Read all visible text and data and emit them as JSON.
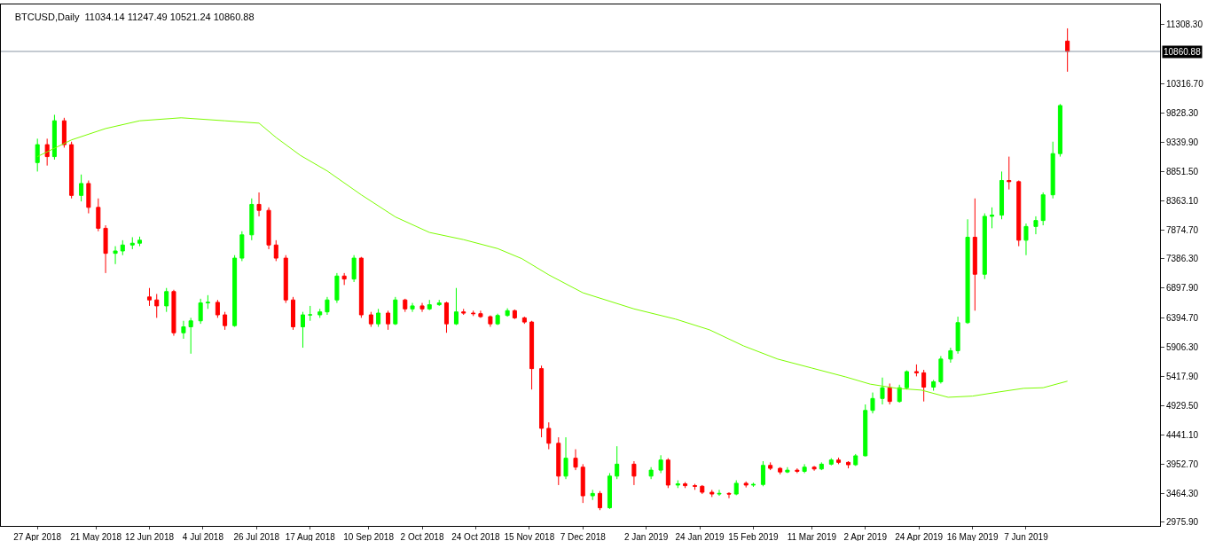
{
  "chart_data": {
    "type": "candlestick",
    "title": "BTCUSD,Daily  11034.14 11247.49 10521.24 10860.88",
    "xlim": [
      "2018-04-12",
      "2019-08-01"
    ],
    "xticks": [
      {
        "value": "2018-04-27",
        "label": "27 Apr 2018"
      },
      {
        "value": "2018-05-21",
        "label": "21 May 2018"
      },
      {
        "value": "2018-06-12",
        "label": "12 Jun 2018"
      },
      {
        "value": "2018-07-04",
        "label": "4 Jul 2018"
      },
      {
        "value": "2018-07-26",
        "label": "26 Jul 2018"
      },
      {
        "value": "2018-08-17",
        "label": "17 Aug 2018"
      },
      {
        "value": "2018-09-10",
        "label": "10 Sep 2018"
      },
      {
        "value": "2018-10-02",
        "label": "2 Oct 2018"
      },
      {
        "value": "2018-10-24",
        "label": "24 Oct 2018"
      },
      {
        "value": "2018-11-15",
        "label": "15 Nov 2018"
      },
      {
        "value": "2018-12-07",
        "label": "7 Dec 2018"
      },
      {
        "value": "2019-01-02",
        "label": "2 Jan 2019"
      },
      {
        "value": "2019-01-24",
        "label": "24 Jan 2019"
      },
      {
        "value": "2019-02-15",
        "label": "15 Feb 2019"
      },
      {
        "value": "2019-03-11",
        "label": "11 Mar 2019"
      },
      {
        "value": "2019-04-02",
        "label": "2 Apr 2019"
      },
      {
        "value": "2019-04-24",
        "label": "24 Apr 2019"
      },
      {
        "value": "2019-05-16",
        "label": "16 May 2019"
      },
      {
        "value": "2019-06-07",
        "label": "7 Jun 2019"
      }
    ],
    "ylim": [
      2916,
      11648
    ],
    "yticks": [
      {
        "value": 2975.9,
        "label": "2975.90"
      },
      {
        "value": 3464.3,
        "label": "3464.30"
      },
      {
        "value": 3952.7,
        "label": "3952.70"
      },
      {
        "value": 4441.1,
        "label": "4441.10"
      },
      {
        "value": 4929.5,
        "label": "4929.50"
      },
      {
        "value": 5417.9,
        "label": "5417.90"
      },
      {
        "value": 5906.3,
        "label": "5906.30"
      },
      {
        "value": 6394.7,
        "label": "6394.70"
      },
      {
        "value": 6897.9,
        "label": "6897.90"
      },
      {
        "value": 7386.3,
        "label": "7386.30"
      },
      {
        "value": 7874.7,
        "label": "7874.70"
      },
      {
        "value": 8363.1,
        "label": "8363.10"
      },
      {
        "value": 8851.5,
        "label": "8851.50"
      },
      {
        "value": 9339.9,
        "label": "9339.90"
      },
      {
        "value": 9828.3,
        "label": "9828.30"
      },
      {
        "value": 10316.7,
        "label": "10316.70"
      },
      {
        "value": 11308.3,
        "label": "11308.30"
      }
    ],
    "ref_lines": [
      {
        "axis": "y",
        "value": 10860.88,
        "label": "10860.88",
        "color": "#8a96a3"
      }
    ],
    "series": [
      {
        "type": "line",
        "color": "#7cfc00",
        "x": [
          "2018-04-27",
          "2018-05-11",
          "2018-05-25",
          "2018-06-08",
          "2018-06-25",
          "2018-07-13",
          "2018-07-27",
          "2018-08-03",
          "2018-08-13",
          "2018-08-24",
          "2018-09-07",
          "2018-09-21",
          "2018-10-05",
          "2018-10-19",
          "2018-11-02",
          "2018-11-12",
          "2018-11-23",
          "2018-12-07",
          "2018-12-28",
          "2019-01-14",
          "2019-01-28",
          "2019-02-11",
          "2019-02-25",
          "2019-03-11",
          "2019-03-25",
          "2019-04-04",
          "2019-04-15",
          "2019-04-25",
          "2019-05-06",
          "2019-05-16",
          "2019-05-27",
          "2019-06-06",
          "2019-06-14",
          "2019-06-24"
        ],
        "values": [
          9100,
          9380,
          9570,
          9700,
          9750,
          9700,
          9660,
          9420,
          9120,
          8860,
          8460,
          8090,
          7830,
          7710,
          7560,
          7390,
          7120,
          6820,
          6550,
          6380,
          6200,
          5930,
          5710,
          5560,
          5410,
          5290,
          5220,
          5190,
          5070,
          5090,
          5160,
          5220,
          5230,
          5340
        ]
      },
      {
        "type": "candlestick",
        "x": [
          "2018-04-27",
          "2018-05-01",
          "2018-05-04",
          "2018-05-08",
          "2018-05-11",
          "2018-05-15",
          "2018-05-18",
          "2018-05-22",
          "2018-05-25",
          "2018-05-29",
          "2018-06-01",
          "2018-06-05",
          "2018-06-08",
          "2018-06-12",
          "2018-06-15",
          "2018-06-19",
          "2018-06-22",
          "2018-06-26",
          "2018-06-29",
          "2018-07-03",
          "2018-07-06",
          "2018-07-10",
          "2018-07-13",
          "2018-07-17",
          "2018-07-20",
          "2018-07-24",
          "2018-07-27",
          "2018-07-31",
          "2018-08-03",
          "2018-08-07",
          "2018-08-10",
          "2018-08-14",
          "2018-08-17",
          "2018-08-21",
          "2018-08-24",
          "2018-08-28",
          "2018-08-31",
          "2018-09-04",
          "2018-09-07",
          "2018-09-11",
          "2018-09-14",
          "2018-09-18",
          "2018-09-21",
          "2018-09-25",
          "2018-09-28",
          "2018-10-02",
          "2018-10-05",
          "2018-10-09",
          "2018-10-12",
          "2018-10-16",
          "2018-10-19",
          "2018-10-23",
          "2018-10-26",
          "2018-10-30",
          "2018-11-02",
          "2018-11-06",
          "2018-11-09",
          "2018-11-13",
          "2018-11-16",
          "2018-11-20",
          "2018-11-23",
          "2018-11-27",
          "2018-11-30",
          "2018-12-04",
          "2018-12-07",
          "2018-12-11",
          "2018-12-14",
          "2018-12-18",
          "2018-12-21",
          "2018-12-28",
          "2019-01-04",
          "2019-01-08",
          "2019-01-11",
          "2019-01-15",
          "2019-01-18",
          "2019-01-22",
          "2019-01-25",
          "2019-01-29",
          "2019-02-01",
          "2019-02-05",
          "2019-02-08",
          "2019-02-12",
          "2019-02-15",
          "2019-02-19",
          "2019-02-22",
          "2019-02-26",
          "2019-03-01",
          "2019-03-05",
          "2019-03-08",
          "2019-03-12",
          "2019-03-15",
          "2019-03-19",
          "2019-03-22",
          "2019-03-26",
          "2019-03-29",
          "2019-04-02",
          "2019-04-05",
          "2019-04-09",
          "2019-04-12",
          "2019-04-16",
          "2019-04-19",
          "2019-04-23",
          "2019-04-26",
          "2019-04-30",
          "2019-05-03",
          "2019-05-07",
          "2019-05-10",
          "2019-05-14",
          "2019-05-17",
          "2019-05-21",
          "2019-05-24",
          "2019-05-28",
          "2019-05-31",
          "2019-06-04",
          "2019-06-07",
          "2019-06-11",
          "2019-06-14",
          "2019-06-18",
          "2019-06-21",
          "2019-06-24"
        ],
        "ohlc": [
          [
            9000,
            9400,
            8850,
            9300
          ],
          [
            9300,
            9400,
            8950,
            9100
          ],
          [
            9100,
            9800,
            9050,
            9700
          ],
          [
            9700,
            9750,
            9250,
            9300
          ],
          [
            9300,
            9350,
            8400,
            8450
          ],
          [
            8450,
            8800,
            8350,
            8650
          ],
          [
            8650,
            8700,
            8150,
            8250
          ],
          [
            8250,
            8400,
            7850,
            7900
          ],
          [
            7900,
            7950,
            7150,
            7480
          ],
          [
            7480,
            7600,
            7300,
            7520
          ],
          [
            7520,
            7700,
            7450,
            7620
          ],
          [
            7620,
            7750,
            7550,
            7650
          ],
          [
            7650,
            7760,
            7600,
            7700
          ],
          [
            6750,
            6900,
            6600,
            6700
          ],
          [
            6700,
            6800,
            6400,
            6600
          ],
          [
            6600,
            6900,
            6500,
            6840
          ],
          [
            6840,
            6870,
            6100,
            6150
          ],
          [
            6150,
            6350,
            6050,
            6250
          ],
          [
            6250,
            6400,
            5800,
            6350
          ],
          [
            6350,
            6720,
            6300,
            6650
          ],
          [
            6650,
            6780,
            6550,
            6660
          ],
          [
            6660,
            6700,
            6400,
            6450
          ],
          [
            6450,
            6500,
            6200,
            6270
          ],
          [
            6270,
            7450,
            6250,
            7400
          ],
          [
            7400,
            7850,
            7350,
            7790
          ],
          [
            7790,
            8400,
            7700,
            8300
          ],
          [
            8300,
            8500,
            8100,
            8200
          ],
          [
            8200,
            8250,
            7550,
            7620
          ],
          [
            7620,
            7700,
            7350,
            7400
          ],
          [
            7400,
            7450,
            6650,
            6700
          ],
          [
            6700,
            6750,
            6200,
            6250
          ],
          [
            6250,
            6500,
            5900,
            6450
          ],
          [
            6450,
            6600,
            6350,
            6450
          ],
          [
            6450,
            6550,
            6400,
            6500
          ],
          [
            6500,
            6750,
            6450,
            6700
          ],
          [
            6700,
            7150,
            6650,
            7100
          ],
          [
            7100,
            7150,
            6950,
            7050
          ],
          [
            7050,
            7450,
            7000,
            7400
          ],
          [
            7400,
            7420,
            6400,
            6450
          ],
          [
            6450,
            6500,
            6250,
            6300
          ],
          [
            6300,
            6550,
            6250,
            6480
          ],
          [
            6480,
            6520,
            6200,
            6300
          ],
          [
            6300,
            6750,
            6280,
            6700
          ],
          [
            6700,
            6720,
            6500,
            6550
          ],
          [
            6550,
            6650,
            6500,
            6600
          ],
          [
            6600,
            6650,
            6500,
            6550
          ],
          [
            6550,
            6700,
            6530,
            6620
          ],
          [
            6620,
            6700,
            6600,
            6650
          ],
          [
            6650,
            6670,
            6150,
            6300
          ],
          [
            6300,
            6900,
            6280,
            6500
          ],
          [
            6500,
            6550,
            6450,
            6480
          ],
          [
            6480,
            6520,
            6430,
            6470
          ],
          [
            6470,
            6520,
            6400,
            6420
          ],
          [
            6420,
            6440,
            6250,
            6300
          ],
          [
            6300,
            6470,
            6280,
            6440
          ],
          [
            6440,
            6560,
            6420,
            6520
          ],
          [
            6520,
            6540,
            6380,
            6400
          ],
          [
            6400,
            6420,
            6300,
            6330
          ],
          [
            6330,
            6350,
            5200,
            5550
          ],
          [
            5550,
            5600,
            4400,
            4550
          ],
          [
            4550,
            4650,
            4200,
            4300
          ],
          [
            4300,
            4400,
            3600,
            3750
          ],
          [
            3750,
            4400,
            3700,
            4050
          ],
          [
            4050,
            4200,
            3850,
            3900
          ],
          [
            3900,
            3950,
            3300,
            3420
          ],
          [
            3420,
            3520,
            3350,
            3460
          ],
          [
            3460,
            3500,
            3180,
            3220
          ],
          [
            3220,
            3800,
            3200,
            3750
          ],
          [
            3750,
            4250,
            3700,
            3950
          ],
          [
            3950,
            4000,
            3600,
            3750
          ],
          [
            3750,
            3900,
            3700,
            3850
          ],
          [
            3850,
            4100,
            3800,
            4020
          ],
          [
            4020,
            4050,
            3550,
            3600
          ],
          [
            3600,
            3680,
            3550,
            3620
          ],
          [
            3620,
            3650,
            3550,
            3590
          ],
          [
            3590,
            3620,
            3520,
            3580
          ],
          [
            3580,
            3600,
            3450,
            3480
          ],
          [
            3480,
            3520,
            3400,
            3450
          ],
          [
            3450,
            3520,
            3420,
            3460
          ],
          [
            3460,
            3480,
            3380,
            3450
          ],
          [
            3450,
            3680,
            3430,
            3630
          ],
          [
            3630,
            3660,
            3560,
            3600
          ],
          [
            3600,
            3640,
            3570,
            3610
          ],
          [
            3610,
            4000,
            3580,
            3930
          ],
          [
            3930,
            3980,
            3850,
            3880
          ],
          [
            3880,
            3900,
            3780,
            3820
          ],
          [
            3820,
            3900,
            3800,
            3850
          ],
          [
            3850,
            3880,
            3800,
            3830
          ],
          [
            3830,
            3950,
            3800,
            3900
          ],
          [
            3900,
            3920,
            3840,
            3870
          ],
          [
            3870,
            3980,
            3850,
            3950
          ],
          [
            3950,
            4050,
            3930,
            4020
          ],
          [
            4020,
            4060,
            3950,
            3980
          ],
          [
            3980,
            4000,
            3880,
            3940
          ],
          [
            3940,
            4120,
            3920,
            4090
          ],
          [
            4090,
            4950,
            4080,
            4850
          ],
          [
            4850,
            5150,
            4800,
            5050
          ],
          [
            5050,
            5400,
            4950,
            5230
          ],
          [
            5230,
            5300,
            4950,
            5000
          ],
          [
            5000,
            5280,
            4980,
            5230
          ],
          [
            5230,
            5520,
            5200,
            5500
          ],
          [
            5500,
            5620,
            5420,
            5480
          ],
          [
            5480,
            5530,
            5000,
            5240
          ],
          [
            5240,
            5360,
            5180,
            5330
          ],
          [
            5330,
            5760,
            5300,
            5710
          ],
          [
            5710,
            5900,
            5650,
            5850
          ],
          [
            5850,
            6420,
            5800,
            6320
          ],
          [
            6320,
            8050,
            6300,
            7750
          ],
          [
            7750,
            8400,
            6520,
            7130
          ],
          [
            7130,
            8150,
            7050,
            8100
          ],
          [
            8100,
            8250,
            7900,
            8120
          ],
          [
            8120,
            8850,
            8050,
            8700
          ],
          [
            8700,
            9100,
            8550,
            8680
          ],
          [
            8680,
            8700,
            7600,
            7700
          ],
          [
            7700,
            7980,
            7450,
            7930
          ],
          [
            7930,
            8100,
            7800,
            8030
          ],
          [
            8030,
            8500,
            7950,
            8460
          ],
          [
            8460,
            9350,
            8400,
            9150
          ],
          [
            9150,
            9980,
            9100,
            9955
          ],
          [
            11034.14,
            11247.49,
            10521.24,
            10860.88
          ]
        ],
        "colors": [
          "#00ff00",
          "#ff0000",
          "#00ff00",
          "#ff0000",
          "#ff0000",
          "#00ff00",
          "#ff0000",
          "#ff0000",
          "#ff0000",
          "#00ff00",
          "#00ff00",
          "#00ff00",
          "#00ff00",
          "#ff0000",
          "#ff0000",
          "#00ff00",
          "#ff0000",
          "#00ff00",
          "#00ff00",
          "#00ff00",
          "#00ff00",
          "#ff0000",
          "#ff0000",
          "#00ff00",
          "#00ff00",
          "#00ff00",
          "#ff0000",
          "#ff0000",
          "#ff0000",
          "#ff0000",
          "#ff0000",
          "#00ff00",
          "#00ff00",
          "#00ff00",
          "#00ff00",
          "#00ff00",
          "#ff0000",
          "#00ff00",
          "#ff0000",
          "#ff0000",
          "#00ff00",
          "#ff0000",
          "#00ff00",
          "#ff0000",
          "#00ff00",
          "#ff0000",
          "#00ff00",
          "#00ff00",
          "#ff0000",
          "#00ff00",
          "#ff0000",
          "#ff0000",
          "#ff0000",
          "#ff0000",
          "#00ff00",
          "#00ff00",
          "#ff0000",
          "#ff0000",
          "#ff0000",
          "#ff0000",
          "#ff0000",
          "#ff0000",
          "#00ff00",
          "#ff0000",
          "#ff0000",
          "#00ff00",
          "#ff0000",
          "#00ff00",
          "#00ff00",
          "#ff0000",
          "#00ff00",
          "#00ff00",
          "#ff0000",
          "#00ff00",
          "#ff0000",
          "#ff0000",
          "#ff0000",
          "#ff0000",
          "#00ff00",
          "#ff0000",
          "#00ff00",
          "#ff0000",
          "#00ff00",
          "#00ff00",
          "#ff0000",
          "#ff0000",
          "#00ff00",
          "#ff0000",
          "#00ff00",
          "#ff0000",
          "#00ff00",
          "#00ff00",
          "#ff0000",
          "#ff0000",
          "#00ff00",
          "#00ff00",
          "#00ff00",
          "#00ff00",
          "#ff0000",
          "#00ff00",
          "#00ff00",
          "#ff0000",
          "#ff0000",
          "#00ff00",
          "#00ff00",
          "#00ff00",
          "#00ff00",
          "#00ff00",
          "#ff0000",
          "#00ff00",
          "#00ff00",
          "#00ff00",
          "#ff0000",
          "#ff0000",
          "#00ff00",
          "#00ff00",
          "#00ff00",
          "#00ff00",
          "#00ff00",
          "#ff0000"
        ]
      }
    ]
  }
}
